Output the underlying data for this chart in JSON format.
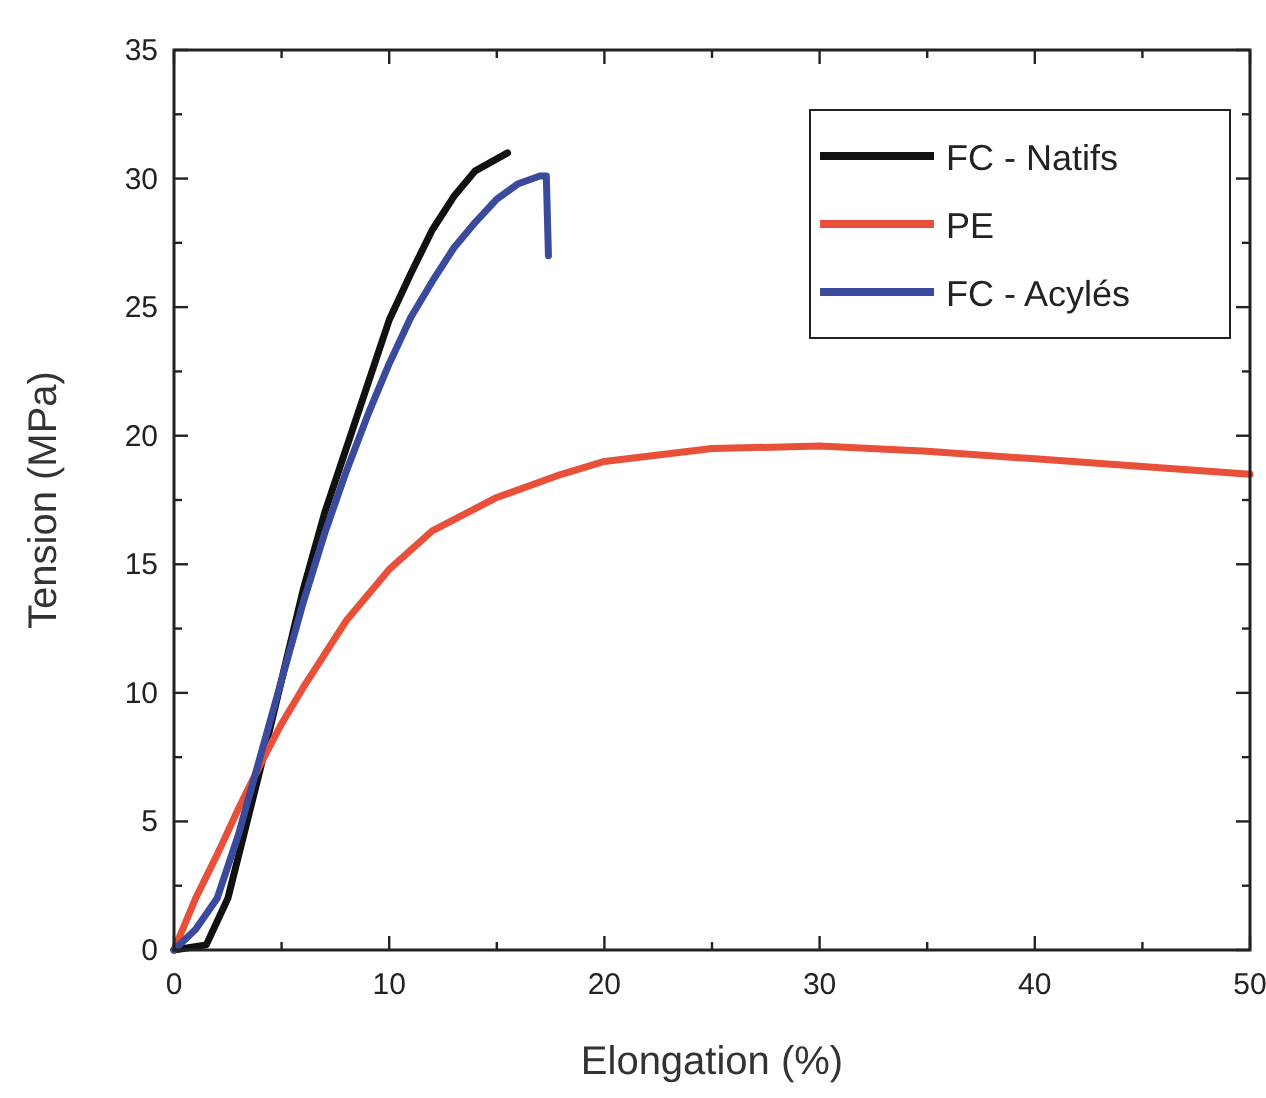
{
  "chart_data": {
    "type": "line",
    "xlabel": "Elongation (%)",
    "ylabel": "Tension (MPa)",
    "xlim": [
      0,
      50
    ],
    "ylim": [
      0,
      35
    ],
    "xticks": [
      0,
      {
        "value": 5,
        "label": null
      },
      10,
      {
        "value": 15,
        "label": null
      },
      20,
      {
        "value": 25,
        "label": null
      },
      30,
      {
        "value": 35,
        "label": null
      },
      40,
      {
        "value": 45,
        "label": null
      },
      50
    ],
    "yticks": [
      0,
      {
        "value": 2.5,
        "label": null
      },
      5,
      {
        "value": 7.5,
        "label": null
      },
      10,
      {
        "value": 12.5,
        "label": null
      },
      15,
      {
        "value": 17.5,
        "label": null
      },
      20,
      {
        "value": 22.5,
        "label": null
      },
      25,
      {
        "value": 27.5,
        "label": null
      },
      30,
      {
        "value": 32.5,
        "label": null
      },
      35
    ],
    "legend": "top right",
    "grid": false,
    "marker": "none",
    "line_style": "solid",
    "series": [
      {
        "name": "FC - Natifs",
        "color": "#111111",
        "x": [
          0,
          1.5,
          2.5,
          4,
          5,
          6,
          7,
          8,
          9,
          10,
          11,
          12,
          13,
          14,
          15.5
        ],
        "values": [
          0,
          0.2,
          2,
          7,
          10.5,
          14,
          17,
          19.5,
          22,
          24.5,
          26.3,
          28,
          29.3,
          30.3,
          31
        ]
      },
      {
        "name": "PE",
        "color": "#e8503a",
        "x": [
          0,
          1,
          2,
          3,
          4,
          5,
          6,
          8,
          10,
          12,
          15,
          18,
          20,
          25,
          30,
          35,
          40,
          45,
          50
        ],
        "values": [
          0,
          2,
          3.7,
          5.5,
          7.2,
          8.8,
          10.2,
          12.8,
          14.8,
          16.3,
          17.6,
          18.5,
          19,
          19.5,
          19.6,
          19.4,
          19.1,
          18.8,
          18.5
        ]
      },
      {
        "name": "FC - Acylés",
        "color": "#3a4a9c",
        "x": [
          0,
          1,
          2,
          3,
          4,
          5,
          6,
          7,
          8,
          9,
          10,
          11,
          12,
          13,
          14,
          15,
          16,
          17,
          17.3,
          17.4
        ],
        "values": [
          0,
          0.8,
          2,
          4.5,
          7.5,
          10.5,
          13.5,
          16.2,
          18.6,
          20.8,
          22.8,
          24.6,
          26,
          27.3,
          28.3,
          29.2,
          29.8,
          30.1,
          30.1,
          27
        ]
      }
    ]
  }
}
